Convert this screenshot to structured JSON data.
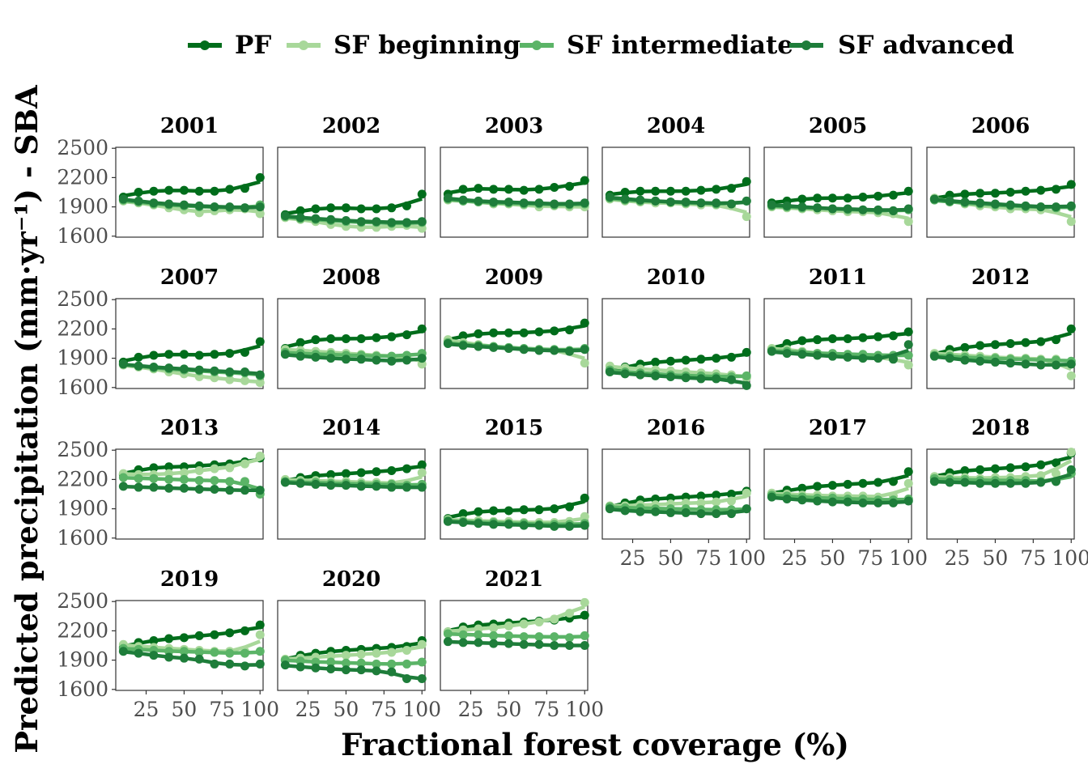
{
  "chart_data": {
    "type": "line",
    "xlabel": "Fractional forest coverage (%)",
    "ylabel": "Predicted precipitation (mm·yr⁻¹) - SBA",
    "xlim": [
      5,
      102
    ],
    "ylim": [
      1590,
      2510
    ],
    "x_ticks": [
      25,
      50,
      75,
      100
    ],
    "y_ticks": [
      1600,
      1900,
      2200,
      2500
    ],
    "x": [
      10,
      20,
      30,
      40,
      50,
      60,
      70,
      80,
      90,
      100
    ],
    "legend": {
      "placement": "top",
      "entries": [
        "PF",
        "SF beginning",
        "SF intermediate",
        "SF advanced"
      ]
    },
    "series_colors": {
      "PF": "#006d1b",
      "SF beginning": "#a8d89a",
      "SF intermediate": "#5bb467",
      "SF advanced": "#1e7d3a"
    },
    "panels": [
      {
        "year": "2001",
        "PF": [
          2000,
          2050,
          2060,
          2070,
          2070,
          2060,
          2060,
          2080,
          2090,
          2200
        ],
        "SF_beginning": [
          1960,
          1940,
          1920,
          1890,
          1870,
          1840,
          1860,
          1870,
          1880,
          1830
        ],
        "SF_intermediate": [
          1970,
          1950,
          1930,
          1920,
          1910,
          1900,
          1900,
          1890,
          1890,
          1920
        ],
        "SF_advanced": [
          1980,
          1960,
          1940,
          1930,
          1920,
          1910,
          1900,
          1900,
          1890,
          1900
        ]
      },
      {
        "year": "2002",
        "PF": [
          1820,
          1860,
          1880,
          1890,
          1890,
          1880,
          1880,
          1890,
          1910,
          2030
        ],
        "SF_beginning": [
          1790,
          1770,
          1750,
          1720,
          1700,
          1690,
          1690,
          1700,
          1710,
          1680
        ],
        "SF_intermediate": [
          1800,
          1780,
          1770,
          1760,
          1750,
          1740,
          1740,
          1730,
          1730,
          1740
        ],
        "SF_advanced": [
          1810,
          1790,
          1780,
          1770,
          1760,
          1750,
          1750,
          1740,
          1740,
          1750
        ]
      },
      {
        "year": "2003",
        "PF": [
          2030,
          2080,
          2090,
          2080,
          2080,
          2070,
          2080,
          2100,
          2110,
          2170
        ],
        "SF_beginning": [
          1970,
          1960,
          1950,
          1930,
          1930,
          1920,
          1900,
          1910,
          1900,
          1900
        ],
        "SF_intermediate": [
          1980,
          1960,
          1950,
          1940,
          1940,
          1930,
          1930,
          1920,
          1920,
          1930
        ],
        "SF_advanced": [
          1990,
          1970,
          1960,
          1950,
          1950,
          1940,
          1940,
          1930,
          1930,
          1940
        ]
      },
      {
        "year": "2004",
        "PF": [
          2020,
          2050,
          2060,
          2060,
          2060,
          2060,
          2070,
          2080,
          2090,
          2160
        ],
        "SF_beginning": [
          1980,
          1960,
          1950,
          1940,
          1940,
          1930,
          1920,
          1920,
          1910,
          1800
        ],
        "SF_intermediate": [
          1990,
          1970,
          1960,
          1960,
          1950,
          1940,
          1940,
          1930,
          1930,
          1960
        ],
        "SF_advanced": [
          2000,
          1980,
          1970,
          1960,
          1950,
          1950,
          1940,
          1940,
          1930,
          1960
        ]
      },
      {
        "year": "2005",
        "PF": [
          1940,
          1960,
          1980,
          1990,
          1990,
          1990,
          2000,
          2010,
          2020,
          2060
        ],
        "SF_beginning": [
          1900,
          1890,
          1880,
          1870,
          1860,
          1850,
          1850,
          1840,
          1830,
          1750
        ],
        "SF_intermediate": [
          1910,
          1900,
          1890,
          1890,
          1880,
          1870,
          1870,
          1860,
          1860,
          1870
        ],
        "SF_advanced": [
          1920,
          1910,
          1900,
          1890,
          1880,
          1880,
          1870,
          1870,
          1860,
          1880
        ]
      },
      {
        "year": "2006",
        "PF": [
          1980,
          2020,
          2030,
          2040,
          2040,
          2050,
          2060,
          2070,
          2080,
          2130
        ],
        "SF_beginning": [
          1990,
          1960,
          1930,
          1910,
          1900,
          1880,
          1880,
          1870,
          1870,
          1750
        ],
        "SF_intermediate": [
          1970,
          1950,
          1940,
          1930,
          1920,
          1910,
          1900,
          1900,
          1890,
          1900
        ],
        "SF_advanced": [
          1980,
          1960,
          1950,
          1940,
          1930,
          1920,
          1910,
          1900,
          1900,
          1910
        ]
      },
      {
        "year": "2007",
        "PF": [
          1860,
          1910,
          1930,
          1940,
          1940,
          1930,
          1940,
          1950,
          1960,
          2070
        ],
        "SF_beginning": [
          1830,
          1810,
          1790,
          1760,
          1740,
          1710,
          1700,
          1680,
          1670,
          1650
        ],
        "SF_intermediate": [
          1840,
          1820,
          1800,
          1790,
          1780,
          1770,
          1760,
          1750,
          1750,
          1720
        ],
        "SF_advanced": [
          1840,
          1820,
          1810,
          1800,
          1790,
          1780,
          1770,
          1760,
          1760,
          1730
        ]
      },
      {
        "year": "2008",
        "PF": [
          2000,
          2060,
          2090,
          2100,
          2100,
          2100,
          2110,
          2120,
          2140,
          2200
        ],
        "SF_beginning": [
          1990,
          1980,
          1970,
          1960,
          1950,
          1940,
          1930,
          1920,
          1920,
          1840
        ],
        "SF_intermediate": [
          1960,
          1950,
          1940,
          1940,
          1930,
          1930,
          1920,
          1920,
          1930,
          1950
        ],
        "SF_advanced": [
          1940,
          1920,
          1910,
          1900,
          1890,
          1890,
          1880,
          1870,
          1880,
          1900
        ]
      },
      {
        "year": "2009",
        "PF": [
          2080,
          2130,
          2150,
          2160,
          2160,
          2160,
          2170,
          2180,
          2190,
          2260
        ],
        "SF_beginning": [
          2090,
          2060,
          2040,
          2020,
          2000,
          1990,
          1990,
          1980,
          1970,
          1850
        ],
        "SF_intermediate": [
          2060,
          2040,
          2030,
          2020,
          2010,
          2000,
          1990,
          1990,
          1980,
          2000
        ],
        "SF_advanced": [
          2050,
          2030,
          2020,
          2010,
          2000,
          1990,
          1980,
          1980,
          1970,
          1990
        ]
      },
      {
        "year": "2010",
        "PF": [
          1770,
          1810,
          1840,
          1860,
          1870,
          1880,
          1890,
          1900,
          1910,
          1960
        ],
        "SF_beginning": [
          1820,
          1800,
          1790,
          1780,
          1770,
          1760,
          1750,
          1740,
          1730,
          1700
        ],
        "SF_intermediate": [
          1780,
          1760,
          1750,
          1740,
          1730,
          1720,
          1720,
          1710,
          1710,
          1720
        ],
        "SF_advanced": [
          1760,
          1740,
          1730,
          1720,
          1710,
          1700,
          1690,
          1690,
          1680,
          1620
        ]
      },
      {
        "year": "2011",
        "PF": [
          1990,
          2050,
          2080,
          2090,
          2100,
          2100,
          2110,
          2120,
          2130,
          2170
        ],
        "SF_beginning": [
          2000,
          1990,
          1970,
          1950,
          1940,
          1930,
          1920,
          1910,
          1900,
          1830
        ],
        "SF_intermediate": [
          1980,
          1970,
          1960,
          1950,
          1950,
          1940,
          1940,
          1930,
          1930,
          1930
        ],
        "SF_advanced": [
          1970,
          1950,
          1940,
          1930,
          1920,
          1910,
          1900,
          1900,
          1890,
          2040
        ]
      },
      {
        "year": "2012",
        "PF": [
          1930,
          1990,
          2010,
          2030,
          2040,
          2050,
          2060,
          2070,
          2090,
          2200
        ],
        "SF_beginning": [
          1950,
          1940,
          1930,
          1920,
          1910,
          1900,
          1900,
          1890,
          1890,
          1720
        ],
        "SF_intermediate": [
          1930,
          1920,
          1910,
          1900,
          1900,
          1890,
          1890,
          1880,
          1880,
          1870
        ],
        "SF_advanced": [
          1920,
          1900,
          1880,
          1870,
          1860,
          1850,
          1840,
          1830,
          1830,
          1840
        ]
      },
      {
        "year": "2013",
        "PF": [
          2250,
          2300,
          2320,
          2330,
          2330,
          2340,
          2350,
          2360,
          2380,
          2420
        ],
        "SF_beginning": [
          2260,
          2250,
          2250,
          2260,
          2270,
          2290,
          2310,
          2320,
          2360,
          2440
        ],
        "SF_intermediate": [
          2220,
          2210,
          2210,
          2200,
          2200,
          2190,
          2190,
          2180,
          2180,
          2050
        ],
        "SF_advanced": [
          2130,
          2120,
          2120,
          2110,
          2110,
          2100,
          2100,
          2090,
          2090,
          2090
        ]
      },
      {
        "year": "2014",
        "PF": [
          2180,
          2220,
          2240,
          2250,
          2260,
          2270,
          2280,
          2290,
          2310,
          2350
        ],
        "SF_beginning": [
          2200,
          2190,
          2190,
          2180,
          2180,
          2170,
          2170,
          2160,
          2160,
          2270
        ],
        "SF_intermediate": [
          2180,
          2170,
          2170,
          2160,
          2160,
          2150,
          2150,
          2150,
          2140,
          2150
        ],
        "SF_advanced": [
          2170,
          2160,
          2150,
          2140,
          2140,
          2130,
          2130,
          2120,
          2120,
          2120
        ]
      },
      {
        "year": "2015",
        "PF": [
          1800,
          1850,
          1870,
          1880,
          1880,
          1890,
          1890,
          1900,
          1920,
          2010
        ],
        "SF_beginning": [
          1790,
          1780,
          1780,
          1770,
          1770,
          1760,
          1760,
          1760,
          1770,
          1820
        ],
        "SF_intermediate": [
          1780,
          1770,
          1760,
          1760,
          1750,
          1750,
          1740,
          1740,
          1740,
          1750
        ],
        "SF_advanced": [
          1770,
          1760,
          1750,
          1740,
          1740,
          1730,
          1730,
          1720,
          1720,
          1730
        ]
      },
      {
        "year": "2016",
        "PF": [
          1910,
          1960,
          1990,
          2000,
          2010,
          2020,
          2030,
          2040,
          2050,
          2080
        ],
        "SF_beginning": [
          1930,
          1930,
          1940,
          1940,
          1950,
          1960,
          1960,
          1970,
          1980,
          2060
        ],
        "SF_intermediate": [
          1920,
          1910,
          1910,
          1900,
          1900,
          1900,
          1890,
          1890,
          1890,
          1900
        ],
        "SF_advanced": [
          1900,
          1880,
          1870,
          1870,
          1860,
          1860,
          1850,
          1850,
          1850,
          1900
        ]
      },
      {
        "year": "2017",
        "PF": [
          2050,
          2090,
          2110,
          2130,
          2140,
          2150,
          2160,
          2170,
          2180,
          2280
        ],
        "SF_beginning": [
          2060,
          2050,
          2040,
          2040,
          2030,
          2030,
          2030,
          2020,
          2030,
          2160
        ],
        "SF_intermediate": [
          2040,
          2030,
          2020,
          2010,
          2010,
          2000,
          2000,
          1990,
          1990,
          2000
        ],
        "SF_advanced": [
          2020,
          2000,
          1990,
          1980,
          1970,
          1970,
          1960,
          1960,
          1960,
          1980
        ]
      },
      {
        "year": "2018",
        "PF": [
          2220,
          2270,
          2290,
          2300,
          2310,
          2320,
          2330,
          2350,
          2370,
          2470
        ],
        "SF_beginning": [
          2230,
          2220,
          2220,
          2210,
          2220,
          2220,
          2230,
          2240,
          2260,
          2480
        ],
        "SF_intermediate": [
          2210,
          2200,
          2200,
          2190,
          2190,
          2190,
          2190,
          2180,
          2180,
          2260
        ],
        "SF_advanced": [
          2180,
          2170,
          2170,
          2160,
          2160,
          2160,
          2160,
          2170,
          2180,
          2300
        ]
      },
      {
        "year": "2019",
        "PF": [
          2030,
          2080,
          2100,
          2120,
          2130,
          2150,
          2160,
          2180,
          2200,
          2260
        ],
        "SF_beginning": [
          2060,
          2040,
          2030,
          2020,
          2010,
          2000,
          1990,
          1990,
          1990,
          2160
        ],
        "SF_intermediate": [
          2020,
          2010,
          2000,
          1990,
          1990,
          1980,
          1980,
          1970,
          1970,
          1990
        ],
        "SF_advanced": [
          1990,
          1970,
          1950,
          1930,
          1920,
          1910,
          1860,
          1860,
          1840,
          1860
        ]
      },
      {
        "year": "2020",
        "PF": [
          1900,
          1950,
          1970,
          1990,
          2000,
          2010,
          2020,
          2030,
          2040,
          2100
        ],
        "SF_beginning": [
          1910,
          1920,
          1930,
          1940,
          1950,
          1960,
          1970,
          1980,
          2000,
          2060
        ],
        "SF_intermediate": [
          1900,
          1890,
          1880,
          1880,
          1870,
          1870,
          1860,
          1860,
          1860,
          1880
        ],
        "SF_advanced": [
          1850,
          1830,
          1820,
          1810,
          1800,
          1800,
          1790,
          1780,
          1710,
          1710
        ]
      },
      {
        "year": "2021",
        "PF": [
          2190,
          2240,
          2260,
          2270,
          2280,
          2290,
          2300,
          2310,
          2330,
          2360
        ],
        "SF_beginning": [
          2190,
          2210,
          2220,
          2230,
          2250,
          2270,
          2290,
          2320,
          2380,
          2490
        ],
        "SF_intermediate": [
          2170,
          2160,
          2160,
          2150,
          2150,
          2140,
          2140,
          2140,
          2130,
          2150
        ],
        "SF_advanced": [
          2090,
          2080,
          2080,
          2070,
          2070,
          2060,
          2060,
          2050,
          2050,
          2050
        ]
      }
    ]
  }
}
